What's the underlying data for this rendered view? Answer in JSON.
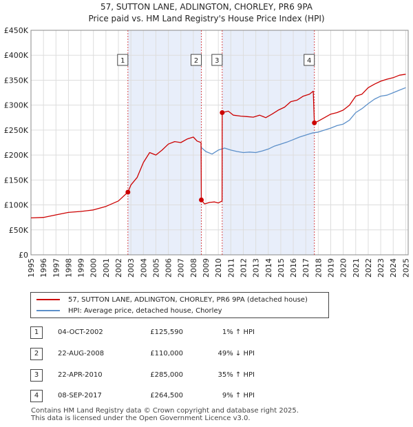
{
  "title_line1": "57, SUTTON LANE, ADLINGTON, CHORLEY, PR6 9PA",
  "title_line2": "Price paid vs. HM Land Registry's House Price Index (HPI)",
  "legend": {
    "red_label": "57, SUTTON LANE, ADLINGTON, CHORLEY, PR6 9PA (detached house)",
    "blue_label": "HPI: Average price, detached house, Chorley"
  },
  "sales": [
    {
      "num": "1",
      "date": "04-OCT-2002",
      "price": "£125,590",
      "hpi": "1% ↑ HPI"
    },
    {
      "num": "2",
      "date": "22-AUG-2008",
      "price": "£110,000",
      "hpi": "49% ↓ HPI"
    },
    {
      "num": "3",
      "date": "22-APR-2010",
      "price": "£285,000",
      "hpi": "35% ↑ HPI"
    },
    {
      "num": "4",
      "date": "08-SEP-2017",
      "price": "£264,500",
      "hpi": "9% ↑ HPI"
    }
  ],
  "footer_line1": "Contains HM Land Registry data © Crown copyright and database right 2025.",
  "footer_line2": "This data is licensed under the Open Government Licence v3.0.",
  "colors": {
    "red": "#cc0000",
    "blue": "#5b8fc9",
    "shade": "#e8eefa",
    "grid": "#dddddd"
  },
  "chart_data": {
    "type": "line",
    "xlim": [
      1995.0,
      2025.2
    ],
    "ylim": [
      0,
      450000
    ],
    "yticks": [
      0,
      50000,
      100000,
      150000,
      200000,
      250000,
      300000,
      350000,
      400000,
      450000
    ],
    "ytick_labels": [
      "£0",
      "£50K",
      "£100K",
      "£150K",
      "£200K",
      "£250K",
      "£300K",
      "£350K",
      "£400K",
      "£450K"
    ],
    "xtick_labels": [
      "1995",
      "1996",
      "1997",
      "1998",
      "1999",
      "2000",
      "2001",
      "2002",
      "2003",
      "2004",
      "2005",
      "2006",
      "2007",
      "2008",
      "2009",
      "2010",
      "2011",
      "2012",
      "2013",
      "2014",
      "2015",
      "2016",
      "2017",
      "2018",
      "2019",
      "2020",
      "2021",
      "2022",
      "2023",
      "2024",
      "2025"
    ],
    "shaded_ranges": [
      [
        2002.76,
        2008.64
      ],
      [
        2010.31,
        2017.69
      ]
    ],
    "sale_markers": [
      {
        "label": "1",
        "x": 2002.76,
        "y": 125590
      },
      {
        "label": "2",
        "x": 2008.64,
        "y": 110000
      },
      {
        "label": "3",
        "x": 2010.31,
        "y": 285000
      },
      {
        "label": "4",
        "x": 2017.69,
        "y": 264500
      }
    ],
    "series": [
      {
        "name": "57, SUTTON LANE, ADLINGTON, CHORLEY, PR6 9PA (detached house)",
        "color": "red",
        "x": [
          1995.0,
          1996.0,
          1997.0,
          1998.0,
          1999.0,
          2000.0,
          2001.0,
          2002.0,
          2002.76,
          2003.0,
          2003.5,
          2004.0,
          2004.5,
          2005.0,
          2005.5,
          2006.0,
          2006.5,
          2007.0,
          2007.5,
          2008.0,
          2008.3,
          2008.62,
          2008.64,
          2008.9,
          2009.3,
          2009.7,
          2010.0,
          2010.3,
          2010.31,
          2010.8,
          2011.2,
          2011.8,
          2012.3,
          2012.8,
          2013.3,
          2013.8,
          2014.3,
          2014.8,
          2015.3,
          2015.8,
          2016.3,
          2016.8,
          2017.3,
          2017.6,
          2017.69,
          2018.0,
          2018.5,
          2019.0,
          2019.5,
          2020.0,
          2020.5,
          2021.0,
          2021.5,
          2022.0,
          2022.5,
          2023.0,
          2023.5,
          2024.0,
          2024.5,
          2025.0
        ],
        "y": [
          74000,
          75000,
          80000,
          85000,
          87000,
          90000,
          97000,
          108000,
          125590,
          140000,
          155000,
          185000,
          205000,
          200000,
          210000,
          222000,
          227000,
          225000,
          232000,
          236000,
          228000,
          225000,
          110000,
          102000,
          105000,
          106000,
          104000,
          108000,
          285000,
          288000,
          280000,
          278000,
          277000,
          276000,
          280000,
          275000,
          282000,
          290000,
          296000,
          307000,
          310000,
          318000,
          322000,
          328000,
          264500,
          268000,
          275000,
          282000,
          285000,
          290000,
          300000,
          318000,
          322000,
          335000,
          342000,
          348000,
          352000,
          355000,
          360000,
          362000
        ]
      },
      {
        "name": "HPI: Average price, detached house, Chorley",
        "color": "blue",
        "x": [
          2008.64,
          2009.0,
          2009.5,
          2010.0,
          2010.5,
          2011.0,
          2011.5,
          2012.0,
          2012.5,
          2013.0,
          2013.5,
          2014.0,
          2014.5,
          2015.0,
          2015.5,
          2016.0,
          2016.5,
          2017.0,
          2017.5,
          2018.0,
          2018.5,
          2019.0,
          2019.5,
          2020.0,
          2020.5,
          2021.0,
          2021.5,
          2022.0,
          2022.5,
          2023.0,
          2023.5,
          2024.0,
          2024.5,
          2025.0
        ],
        "y": [
          215000,
          207000,
          202000,
          210000,
          214000,
          210000,
          207000,
          205000,
          206000,
          205000,
          208000,
          212000,
          218000,
          222000,
          226000,
          231000,
          236000,
          240000,
          244000,
          246000,
          250000,
          254000,
          259000,
          262000,
          270000,
          285000,
          293000,
          303000,
          312000,
          318000,
          320000,
          325000,
          330000,
          335000
        ]
      }
    ]
  }
}
